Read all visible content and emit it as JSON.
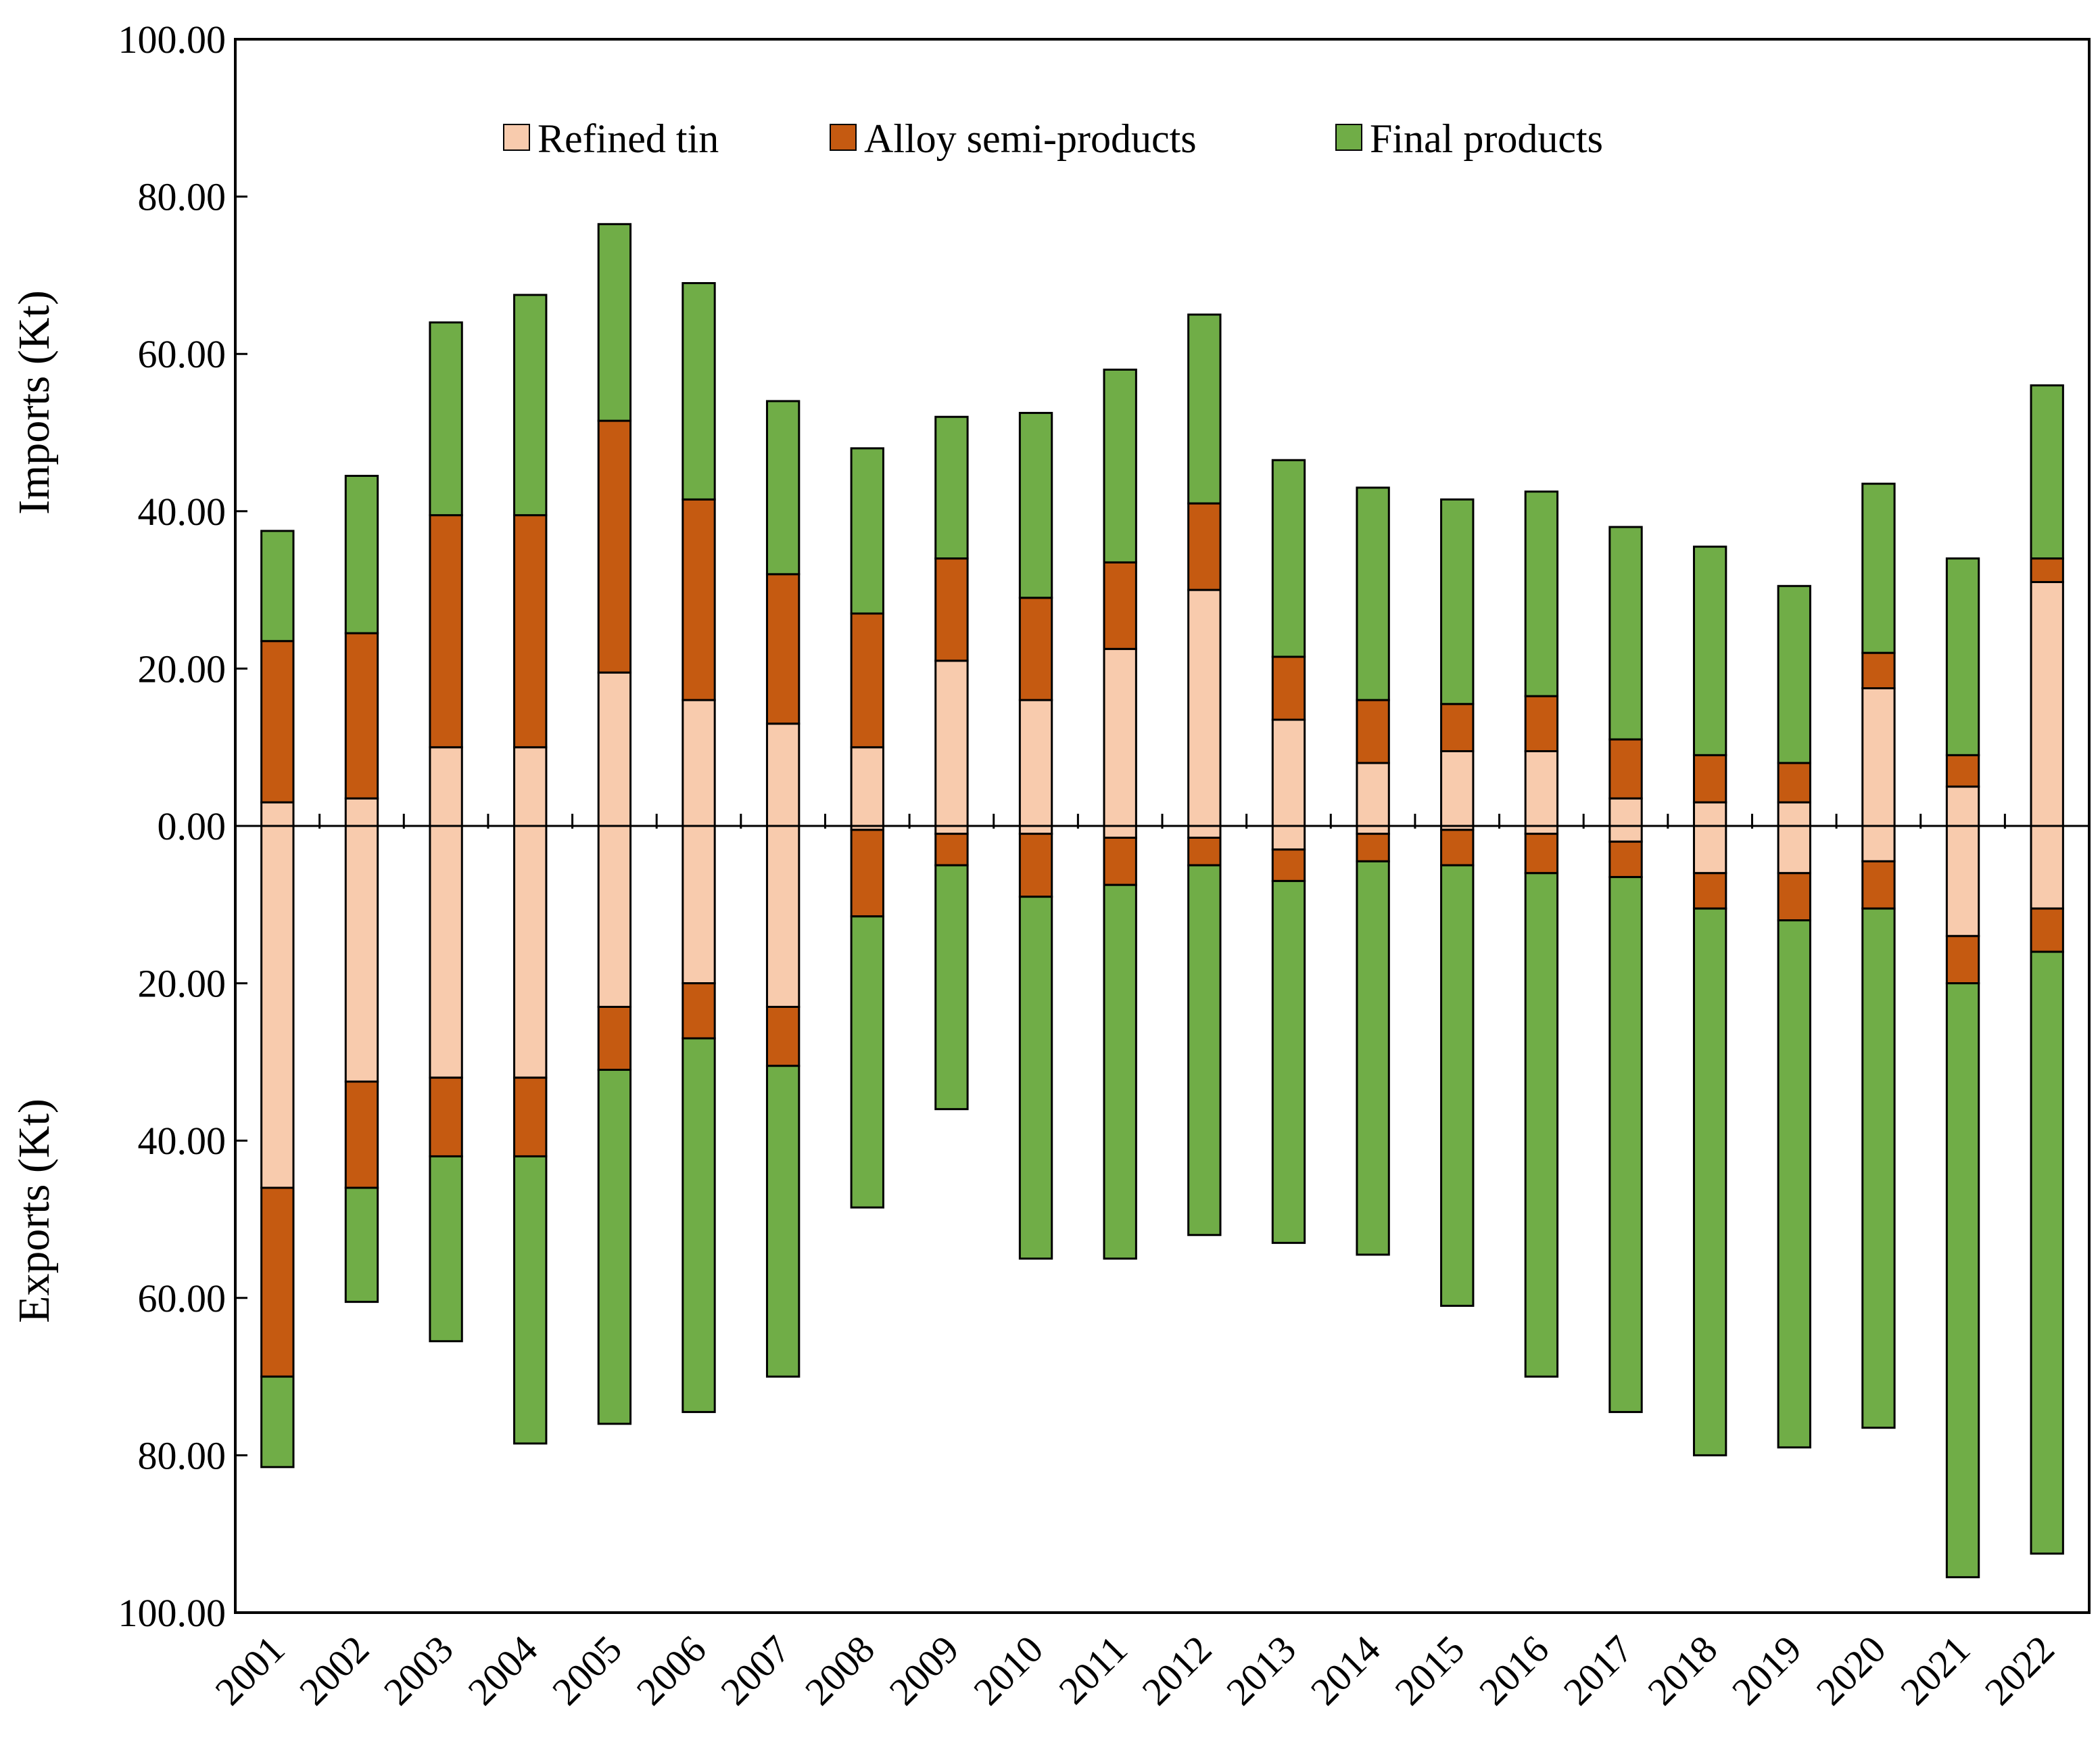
{
  "chart_data": {
    "type": "bar",
    "stacked": true,
    "diverging": true,
    "title": "",
    "xlabel": "",
    "ylabel_top": "Imports (Kt)",
    "ylabel_bottom": "Exports (Kt)",
    "ylim": [
      -100,
      100
    ],
    "yticks": [
      {
        "value": 100,
        "label": "100.00"
      },
      {
        "value": 80,
        "label": "80.00"
      },
      {
        "value": 60,
        "label": "60.00"
      },
      {
        "value": 40,
        "label": "40.00"
      },
      {
        "value": 20,
        "label": "20.00"
      },
      {
        "value": 0,
        "label": "0.00"
      },
      {
        "value": -20,
        "label": "20.00"
      },
      {
        "value": -40,
        "label": "40.00"
      },
      {
        "value": -60,
        "label": "60.00"
      },
      {
        "value": -80,
        "label": "80.00"
      },
      {
        "value": -100,
        "label": "100.00"
      }
    ],
    "categories": [
      "2001",
      "2002",
      "2003",
      "2004",
      "2005",
      "2006",
      "2007",
      "2008",
      "2009",
      "2010",
      "2011",
      "2012",
      "2013",
      "2014",
      "2015",
      "2016",
      "2017",
      "2018",
      "2019",
      "2020",
      "2021",
      "2022"
    ],
    "legend": [
      "Refined tin",
      "Alloy semi-products",
      "Final products"
    ],
    "legend_position": "top",
    "colors": {
      "Refined tin": "#f8cbad",
      "Alloy semi-products": "#c55a11",
      "Final products": "#70ad47",
      "outline": "#000000"
    },
    "imports": [
      {
        "name": "Refined tin",
        "values": [
          3.0,
          3.5,
          10.0,
          10.0,
          19.5,
          16.0,
          13.0,
          10.0,
          21.0,
          16.0,
          22.5,
          30.0,
          13.5,
          8.0,
          9.5,
          9.5,
          3.5,
          3.0,
          3.0,
          17.5,
          5.0,
          31.0
        ]
      },
      {
        "name": "Alloy semi-products",
        "values": [
          20.5,
          21.0,
          29.5,
          29.5,
          32.0,
          25.5,
          19.0,
          17.0,
          13.0,
          13.0,
          11.0,
          11.0,
          8.0,
          8.0,
          6.0,
          7.0,
          7.5,
          6.0,
          5.0,
          4.5,
          4.0,
          3.0
        ]
      },
      {
        "name": "Final products",
        "values": [
          14.0,
          20.0,
          24.5,
          28.0,
          25.0,
          27.5,
          22.0,
          21.0,
          18.0,
          23.5,
          24.5,
          24.0,
          25.0,
          27.0,
          26.0,
          26.0,
          27.0,
          26.5,
          22.5,
          21.5,
          25.0,
          22.0
        ]
      }
    ],
    "exports": [
      {
        "name": "Refined tin",
        "values": [
          -46.0,
          -32.5,
          -32.0,
          -32.0,
          -23.0,
          -20.0,
          -23.0,
          -0.5,
          -1.0,
          -1.0,
          -1.5,
          -1.5,
          -3.0,
          -1.0,
          -0.5,
          -1.0,
          -2.0,
          -6.0,
          -6.0,
          -4.5,
          -14.0,
          -10.5
        ]
      },
      {
        "name": "Alloy semi-products",
        "values": [
          -24.0,
          -13.5,
          -10.0,
          -10.0,
          -8.0,
          -7.0,
          -7.5,
          -11.0,
          -4.0,
          -8.0,
          -6.0,
          -3.5,
          -4.0,
          -3.5,
          -4.5,
          -5.0,
          -4.5,
          -4.5,
          -6.0,
          -6.0,
          -6.0,
          -5.5
        ]
      },
      {
        "name": "Final products",
        "values": [
          -11.5,
          -14.5,
          -23.5,
          -36.5,
          -45.0,
          -47.5,
          -39.5,
          -37.0,
          -31.0,
          -46.0,
          -47.5,
          -47.0,
          -46.0,
          -50.0,
          -56.0,
          -64.0,
          -68.0,
          -69.5,
          -67.0,
          -66.0,
          -75.5,
          -76.5
        ]
      }
    ]
  }
}
